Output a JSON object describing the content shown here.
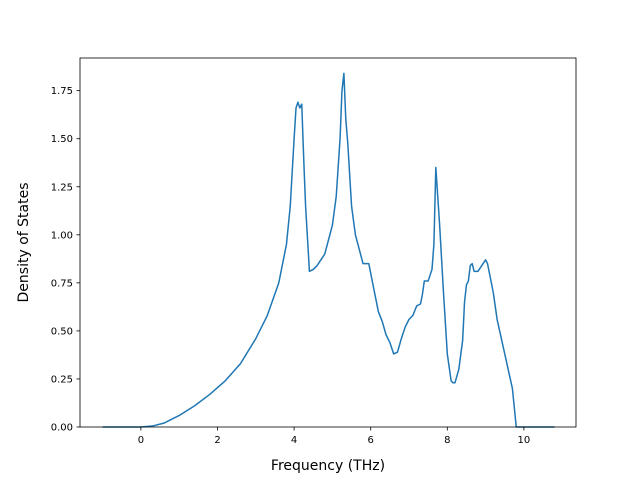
{
  "chart_data": {
    "type": "line",
    "title": "",
    "xlabel": "Frequency (THz)",
    "ylabel": "Density of States",
    "xlim": [
      -1.59,
      11.36
    ],
    "ylim": [
      0.0,
      1.92
    ],
    "xticks": [
      0,
      2,
      4,
      6,
      8,
      10
    ],
    "yticks": [
      0.0,
      0.25,
      0.5,
      0.75,
      1.0,
      1.25,
      1.5,
      1.75
    ],
    "xtick_labels": [
      "0",
      "2",
      "4",
      "6",
      "8",
      "10"
    ],
    "ytick_labels": [
      "0.00",
      "0.25",
      "0.50",
      "0.75",
      "1.00",
      "1.25",
      "1.50",
      "1.75"
    ],
    "grid": false,
    "legend": "none",
    "line_color": "#1f77b4",
    "series": [
      {
        "x": [
          -1.0,
          0.0,
          0.3,
          0.6,
          1.0,
          1.4,
          1.8,
          2.2,
          2.6,
          3.0,
          3.3,
          3.6,
          3.8,
          3.9,
          4.0,
          4.05,
          4.1,
          4.15,
          4.2,
          4.25,
          4.3,
          4.4,
          4.5,
          4.6,
          4.8,
          5.0,
          5.1,
          5.2,
          5.25,
          5.3,
          5.35,
          5.4,
          5.5,
          5.6,
          5.8,
          5.95,
          6.05,
          6.2,
          6.3,
          6.4,
          6.5,
          6.6,
          6.7,
          6.8,
          6.9,
          7.0,
          7.1,
          7.2,
          7.3,
          7.35,
          7.4,
          7.5,
          7.6,
          7.65,
          7.7,
          7.8,
          7.9,
          8.0,
          8.1,
          8.15,
          8.2,
          8.3,
          8.4,
          8.45,
          8.5,
          8.55,
          8.6,
          8.65,
          8.7,
          8.8,
          8.9,
          9.0,
          9.05,
          9.1,
          9.2,
          9.3,
          9.5,
          9.7,
          9.8,
          10.0,
          10.8
        ],
        "y": [
          0.0,
          0.0,
          0.005,
          0.02,
          0.06,
          0.11,
          0.17,
          0.24,
          0.33,
          0.46,
          0.58,
          0.75,
          0.95,
          1.15,
          1.5,
          1.66,
          1.69,
          1.66,
          1.68,
          1.4,
          1.15,
          0.81,
          0.82,
          0.84,
          0.9,
          1.05,
          1.2,
          1.5,
          1.75,
          1.84,
          1.6,
          1.48,
          1.15,
          1.0,
          0.85,
          0.85,
          0.75,
          0.6,
          0.55,
          0.48,
          0.44,
          0.38,
          0.39,
          0.46,
          0.52,
          0.56,
          0.58,
          0.63,
          0.64,
          0.69,
          0.76,
          0.76,
          0.82,
          0.95,
          1.35,
          1.05,
          0.7,
          0.38,
          0.24,
          0.23,
          0.23,
          0.3,
          0.45,
          0.65,
          0.74,
          0.76,
          0.84,
          0.85,
          0.81,
          0.81,
          0.84,
          0.87,
          0.85,
          0.8,
          0.7,
          0.56,
          0.38,
          0.2,
          0.0,
          0.0,
          0.0
        ]
      }
    ]
  }
}
